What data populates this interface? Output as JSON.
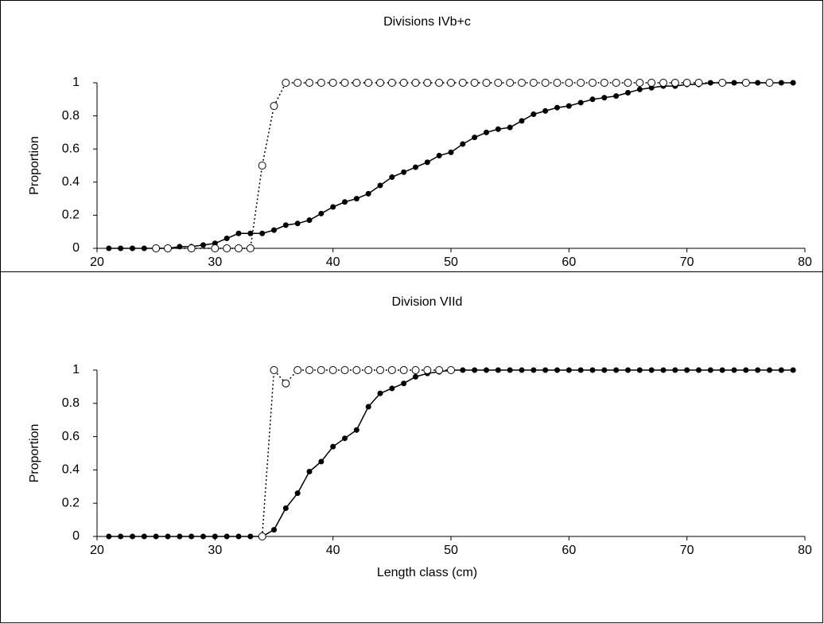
{
  "chart_data": [
    {
      "type": "line",
      "title": "Divisions IVb+c",
      "ylabel": "Proportion",
      "xlim": [
        20,
        80
      ],
      "xticks": [
        20,
        30,
        40,
        50,
        60,
        70,
        80
      ],
      "ylim": [
        0,
        1
      ],
      "yticks": [
        0,
        0.2,
        0.4,
        0.6,
        0.8,
        1
      ],
      "series": [
        {
          "color": "#000000",
          "marker": "filled",
          "dash": "solid",
          "x": [
            21,
            22,
            23,
            24,
            25,
            26,
            27,
            28,
            29,
            30,
            31,
            32,
            33,
            34,
            35,
            36,
            37,
            38,
            39,
            40,
            41,
            42,
            43,
            44,
            45,
            46,
            47,
            48,
            49,
            50,
            51,
            52,
            53,
            54,
            55,
            56,
            57,
            58,
            59,
            60,
            61,
            62,
            63,
            64,
            65,
            66,
            67,
            68,
            69,
            70,
            71,
            72,
            73,
            74,
            75,
            76,
            77,
            78,
            79
          ],
          "values": [
            0,
            0,
            0,
            0,
            0,
            0,
            0.01,
            0.01,
            0.02,
            0.03,
            0.06,
            0.09,
            0.09,
            0.09,
            0.11,
            0.14,
            0.15,
            0.17,
            0.21,
            0.25,
            0.28,
            0.3,
            0.33,
            0.38,
            0.43,
            0.46,
            0.49,
            0.52,
            0.56,
            0.58,
            0.63,
            0.67,
            0.7,
            0.72,
            0.73,
            0.77,
            0.81,
            0.83,
            0.85,
            0.86,
            0.88,
            0.9,
            0.91,
            0.92,
            0.94,
            0.96,
            0.97,
            0.98,
            0.98,
            0.99,
            0.99,
            1,
            1,
            1,
            1,
            1,
            1,
            1,
            1
          ]
        },
        {
          "color": "#000000",
          "marker": "open",
          "dash": "dotted",
          "x": [
            25,
            26,
            28,
            30,
            31,
            32,
            33,
            34,
            35,
            36,
            37,
            38,
            39,
            40,
            41,
            42,
            43,
            44,
            45,
            46,
            47,
            48,
            49,
            50,
            51,
            52,
            53,
            54,
            55,
            56,
            57,
            58,
            59,
            60,
            61,
            62,
            63,
            64,
            65,
            66,
            67,
            68,
            69,
            70,
            71,
            73,
            75,
            77
          ],
          "values": [
            0,
            0,
            0,
            0,
            0,
            0,
            0,
            0.5,
            0.86,
            1,
            1,
            1,
            1,
            1,
            1,
            1,
            1,
            1,
            1,
            1,
            1,
            1,
            1,
            1,
            1,
            1,
            1,
            1,
            1,
            1,
            1,
            1,
            1,
            1,
            1,
            1,
            1,
            1,
            1,
            1,
            1,
            1,
            1,
            1,
            1,
            1,
            1,
            1
          ]
        }
      ]
    },
    {
      "type": "line",
      "title": "Division VIId",
      "ylabel": "Proportion",
      "xlabel": "Length class (cm)",
      "xlim": [
        20,
        80
      ],
      "xticks": [
        20,
        30,
        40,
        50,
        60,
        70,
        80
      ],
      "ylim": [
        0,
        1
      ],
      "yticks": [
        0,
        0.2,
        0.4,
        0.6,
        0.8,
        1
      ],
      "series": [
        {
          "color": "#000000",
          "marker": "filled",
          "dash": "solid",
          "x": [
            21,
            22,
            23,
            24,
            25,
            26,
            27,
            28,
            29,
            30,
            31,
            32,
            33,
            34,
            35,
            36,
            37,
            38,
            39,
            40,
            41,
            42,
            43,
            44,
            45,
            46,
            47,
            48,
            49,
            50,
            51,
            52,
            53,
            54,
            55,
            56,
            57,
            58,
            59,
            60,
            61,
            62,
            63,
            64,
            65,
            66,
            67,
            68,
            69,
            70,
            71,
            72,
            73,
            74,
            75,
            76,
            77,
            78,
            79
          ],
          "values": [
            0,
            0,
            0,
            0,
            0,
            0,
            0,
            0,
            0,
            0,
            0,
            0,
            0,
            0,
            0.04,
            0.17,
            0.26,
            0.39,
            0.45,
            0.54,
            0.59,
            0.64,
            0.78,
            0.86,
            0.89,
            0.92,
            0.96,
            0.98,
            0.99,
            1,
            1,
            1,
            1,
            1,
            1,
            1,
            1,
            1,
            1,
            1,
            1,
            1,
            1,
            1,
            1,
            1,
            1,
            1,
            1,
            1,
            1,
            1,
            1,
            1,
            1,
            1,
            1,
            1,
            1
          ]
        },
        {
          "color": "#000000",
          "marker": "open",
          "dash": "dotted",
          "x": [
            34,
            35,
            36,
            37,
            38,
            39,
            40,
            41,
            42,
            43,
            44,
            45,
            46,
            47,
            48,
            49,
            50
          ],
          "values": [
            0,
            1,
            0.92,
            1,
            1,
            1,
            1,
            1,
            1,
            1,
            1,
            1,
            1,
            1,
            1,
            1,
            1
          ]
        }
      ]
    }
  ]
}
